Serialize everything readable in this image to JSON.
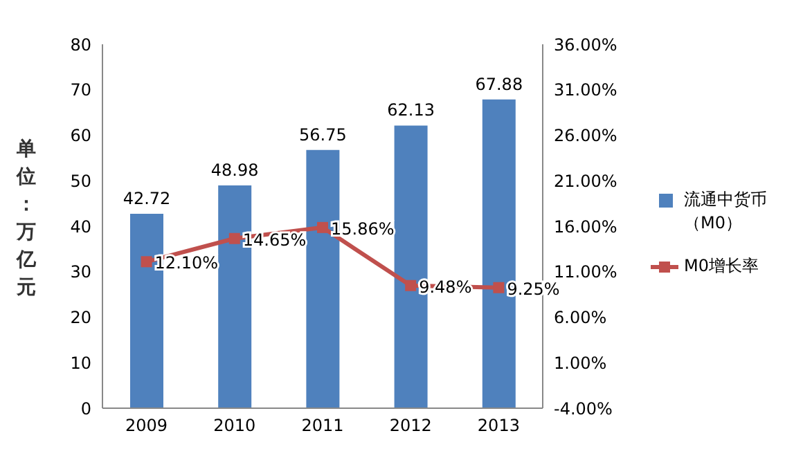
{
  "chart_data": {
    "type": "bar",
    "ylabel": "单位：万亿元",
    "categories": [
      "2009",
      "2010",
      "2011",
      "2012",
      "2013"
    ],
    "series": [
      {
        "name": "流通中货币（M0）",
        "color": "#4f81bd",
        "values": [
          42.72,
          48.98,
          56.75,
          62.13,
          67.88
        ],
        "value_labels": [
          "42.72",
          "48.98",
          "56.75",
          "62.13",
          "67.88"
        ]
      },
      {
        "name": "M0增长率",
        "type": "line",
        "axis": "y2",
        "color": "#c0504d",
        "marker": "square",
        "values": [
          12.1,
          14.65,
          15.86,
          9.48,
          9.25
        ],
        "value_labels": [
          "12.10%",
          "14.65%",
          "15.86%",
          "9.48%",
          "9.25%"
        ]
      }
    ],
    "ylim": [
      0,
      80
    ],
    "yticks": [
      0,
      10,
      20,
      30,
      40,
      50,
      60,
      70,
      80
    ],
    "y2lim": [
      -4,
      36
    ],
    "y2ticks": [
      {
        "value": -4,
        "label": "-4.00%"
      },
      {
        "value": 1,
        "label": "1.00%"
      },
      {
        "value": 6,
        "label": "6.00%"
      },
      {
        "value": 11,
        "label": "11.00%"
      },
      {
        "value": 16,
        "label": "16.00%"
      },
      {
        "value": 21,
        "label": "21.00%"
      },
      {
        "value": 26,
        "label": "26.00%"
      },
      {
        "value": 31,
        "label": "31.00%"
      },
      {
        "value": 36,
        "label": "36.00%"
      }
    ],
    "grid": false,
    "legend": "right"
  }
}
